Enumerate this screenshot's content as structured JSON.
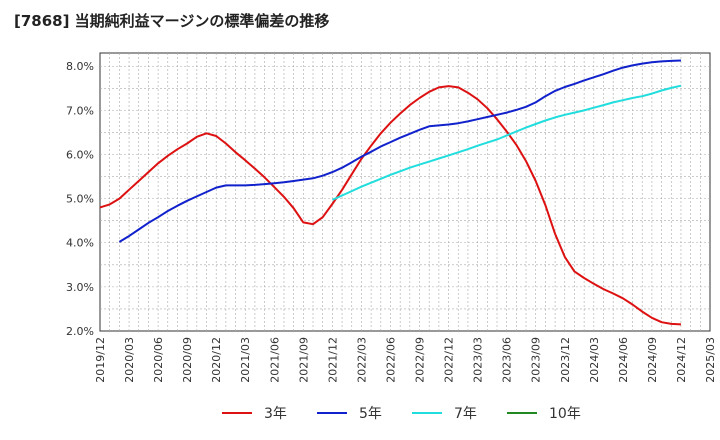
{
  "title": "[7868]  当期純利益マージンの標準偏差の推移",
  "chart_data": {
    "type": "line",
    "title": "[7868]  当期純利益マージンの標準偏差の推移",
    "xlabel": "",
    "ylabel": "",
    "ylim": [
      2.0,
      8.3
    ],
    "y_ticks": [
      "2.0%",
      "3.0%",
      "4.0%",
      "5.0%",
      "6.0%",
      "7.0%",
      "8.0%"
    ],
    "y_tick_values": [
      2.0,
      3.0,
      4.0,
      5.0,
      6.0,
      7.0,
      8.0
    ],
    "x_ticks": [
      "2019/12",
      "2020/03",
      "2020/06",
      "2020/09",
      "2020/12",
      "2021/03",
      "2021/06",
      "2021/09",
      "2021/12",
      "2022/03",
      "2022/06",
      "2022/09",
      "2022/12",
      "2023/03",
      "2023/06",
      "2023/09",
      "2023/12",
      "2024/03",
      "2024/06",
      "2024/09",
      "2024/12",
      "2025/03"
    ],
    "grid": true,
    "legend_position": "bottom",
    "series": [
      {
        "name": "3年",
        "color": "#dd1111",
        "values": [
          [
            "2019/12",
            4.8
          ],
          [
            "2020/01",
            4.87
          ],
          [
            "2020/02",
            5.0
          ],
          [
            "2020/03",
            5.2
          ],
          [
            "2020/04",
            5.4
          ],
          [
            "2020/05",
            5.6
          ],
          [
            "2020/06",
            5.8
          ],
          [
            "2020/07",
            5.97
          ],
          [
            "2020/08",
            6.12
          ],
          [
            "2020/09",
            6.25
          ],
          [
            "2020/10",
            6.4
          ],
          [
            "2020/11",
            6.48
          ],
          [
            "2020/12",
            6.42
          ],
          [
            "2021/01",
            6.25
          ],
          [
            "2021/02",
            6.05
          ],
          [
            "2021/03",
            5.87
          ],
          [
            "2021/04",
            5.68
          ],
          [
            "2021/05",
            5.48
          ],
          [
            "2021/06",
            5.26
          ],
          [
            "2021/07",
            5.04
          ],
          [
            "2021/08",
            4.78
          ],
          [
            "2021/09",
            4.46
          ],
          [
            "2021/10",
            4.42
          ],
          [
            "2021/11",
            4.58
          ],
          [
            "2021/12",
            4.88
          ],
          [
            "2022/01",
            5.2
          ],
          [
            "2022/02",
            5.55
          ],
          [
            "2022/03",
            5.9
          ],
          [
            "2022/04",
            6.2
          ],
          [
            "2022/05",
            6.48
          ],
          [
            "2022/06",
            6.72
          ],
          [
            "2022/07",
            6.93
          ],
          [
            "2022/08",
            7.12
          ],
          [
            "2022/09",
            7.28
          ],
          [
            "2022/10",
            7.42
          ],
          [
            "2022/11",
            7.52
          ],
          [
            "2022/12",
            7.55
          ],
          [
            "2023/01",
            7.52
          ],
          [
            "2023/02",
            7.4
          ],
          [
            "2023/03",
            7.25
          ],
          [
            "2023/04",
            7.05
          ],
          [
            "2023/05",
            6.8
          ],
          [
            "2023/06",
            6.52
          ],
          [
            "2023/07",
            6.22
          ],
          [
            "2023/08",
            5.85
          ],
          [
            "2023/09",
            5.4
          ],
          [
            "2023/10",
            4.85
          ],
          [
            "2023/11",
            4.2
          ],
          [
            "2023/12",
            3.68
          ],
          [
            "2024/01",
            3.35
          ],
          [
            "2024/02",
            3.2
          ],
          [
            "2024/03",
            3.07
          ],
          [
            "2024/04",
            2.95
          ],
          [
            "2024/05",
            2.85
          ],
          [
            "2024/06",
            2.74
          ],
          [
            "2024/07",
            2.6
          ],
          [
            "2024/08",
            2.44
          ],
          [
            "2024/09",
            2.3
          ],
          [
            "2024/10",
            2.2
          ],
          [
            "2024/11",
            2.16
          ],
          [
            "2024/12",
            2.15
          ]
        ]
      },
      {
        "name": "5年",
        "color": "#1122cc",
        "values": [
          [
            "2020/02",
            4.02
          ],
          [
            "2020/03",
            4.15
          ],
          [
            "2020/04",
            4.3
          ],
          [
            "2020/05",
            4.45
          ],
          [
            "2020/06",
            4.58
          ],
          [
            "2020/07",
            4.72
          ],
          [
            "2020/08",
            4.84
          ],
          [
            "2020/09",
            4.95
          ],
          [
            "2020/10",
            5.05
          ],
          [
            "2020/11",
            5.15
          ],
          [
            "2020/12",
            5.25
          ],
          [
            "2021/01",
            5.3
          ],
          [
            "2021/02",
            5.3
          ],
          [
            "2021/03",
            5.3
          ],
          [
            "2021/04",
            5.31
          ],
          [
            "2021/05",
            5.33
          ],
          [
            "2021/06",
            5.35
          ],
          [
            "2021/07",
            5.37
          ],
          [
            "2021/08",
            5.4
          ],
          [
            "2021/09",
            5.43
          ],
          [
            "2021/10",
            5.46
          ],
          [
            "2021/11",
            5.52
          ],
          [
            "2021/12",
            5.6
          ],
          [
            "2022/01",
            5.7
          ],
          [
            "2022/02",
            5.82
          ],
          [
            "2022/03",
            5.95
          ],
          [
            "2022/04",
            6.06
          ],
          [
            "2022/05",
            6.18
          ],
          [
            "2022/06",
            6.28
          ],
          [
            "2022/07",
            6.38
          ],
          [
            "2022/08",
            6.47
          ],
          [
            "2022/09",
            6.56
          ],
          [
            "2022/10",
            6.64
          ],
          [
            "2022/11",
            6.66
          ],
          [
            "2022/12",
            6.68
          ],
          [
            "2023/01",
            6.71
          ],
          [
            "2023/02",
            6.75
          ],
          [
            "2023/03",
            6.8
          ],
          [
            "2023/04",
            6.85
          ],
          [
            "2023/05",
            6.9
          ],
          [
            "2023/06",
            6.95
          ],
          [
            "2023/07",
            7.01
          ],
          [
            "2023/08",
            7.08
          ],
          [
            "2023/09",
            7.18
          ],
          [
            "2023/10",
            7.32
          ],
          [
            "2023/11",
            7.44
          ],
          [
            "2023/12",
            7.53
          ],
          [
            "2024/01",
            7.6
          ],
          [
            "2024/02",
            7.68
          ],
          [
            "2024/03",
            7.75
          ],
          [
            "2024/04",
            7.82
          ],
          [
            "2024/05",
            7.9
          ],
          [
            "2024/06",
            7.97
          ],
          [
            "2024/07",
            8.02
          ],
          [
            "2024/08",
            8.06
          ],
          [
            "2024/09",
            8.09
          ],
          [
            "2024/10",
            8.11
          ],
          [
            "2024/11",
            8.12
          ],
          [
            "2024/12",
            8.13
          ]
        ]
      },
      {
        "name": "7年",
        "color": "#22dddd",
        "values": [
          [
            "2021/12",
            4.97
          ],
          [
            "2022/01",
            5.07
          ],
          [
            "2022/02",
            5.17
          ],
          [
            "2022/03",
            5.27
          ],
          [
            "2022/04",
            5.36
          ],
          [
            "2022/05",
            5.45
          ],
          [
            "2022/06",
            5.54
          ],
          [
            "2022/07",
            5.62
          ],
          [
            "2022/08",
            5.7
          ],
          [
            "2022/09",
            5.77
          ],
          [
            "2022/10",
            5.84
          ],
          [
            "2022/11",
            5.91
          ],
          [
            "2022/12",
            5.98
          ],
          [
            "2023/01",
            6.05
          ],
          [
            "2023/02",
            6.12
          ],
          [
            "2023/03",
            6.2
          ],
          [
            "2023/04",
            6.27
          ],
          [
            "2023/05",
            6.34
          ],
          [
            "2023/06",
            6.43
          ],
          [
            "2023/07",
            6.52
          ],
          [
            "2023/08",
            6.61
          ],
          [
            "2023/09",
            6.69
          ],
          [
            "2023/10",
            6.77
          ],
          [
            "2023/11",
            6.84
          ],
          [
            "2023/12",
            6.9
          ],
          [
            "2024/01",
            6.95
          ],
          [
            "2024/02",
            7.0
          ],
          [
            "2024/03",
            7.06
          ],
          [
            "2024/04",
            7.12
          ],
          [
            "2024/05",
            7.18
          ],
          [
            "2024/06",
            7.23
          ],
          [
            "2024/07",
            7.28
          ],
          [
            "2024/08",
            7.32
          ],
          [
            "2024/09",
            7.38
          ],
          [
            "2024/10",
            7.45
          ],
          [
            "2024/11",
            7.51
          ],
          [
            "2024/12",
            7.56
          ]
        ]
      },
      {
        "name": "10年",
        "color": "#228822",
        "values": []
      }
    ]
  }
}
